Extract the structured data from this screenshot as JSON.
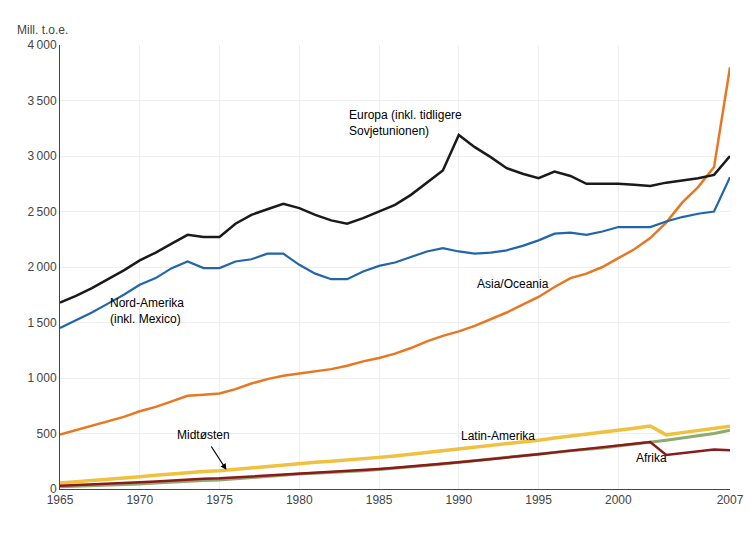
{
  "chart_data": {
    "type": "line",
    "y_label": "Mill. t.o.e.",
    "x": [
      1965,
      1966,
      1967,
      1968,
      1969,
      1970,
      1971,
      1972,
      1973,
      1974,
      1975,
      1976,
      1977,
      1978,
      1979,
      1980,
      1981,
      1982,
      1983,
      1984,
      1985,
      1986,
      1987,
      1988,
      1989,
      1990,
      1991,
      1992,
      1993,
      1994,
      1995,
      1996,
      1997,
      1998,
      1999,
      2000,
      2001,
      2002,
      2003,
      2004,
      2005,
      2006,
      2007
    ],
    "series": [
      {
        "color": "#f0c040",
        "values": [
          55,
          65,
          75,
          86,
          97,
          110,
          123,
          136,
          150,
          158,
          165,
          178,
          193,
          207,
          222,
          232,
          241,
          250,
          260,
          272,
          285,
          298,
          313,
          330,
          347,
          362,
          375,
          390,
          405,
          422,
          440,
          460,
          476,
          494,
          510,
          530,
          548,
          567,
          488,
          508,
          528,
          545,
          565
        ]
      },
      {
        "color": "#8faa6e",
        "values": [
          20,
          24,
          28,
          33,
          39,
          46,
          54,
          63,
          74,
          77,
          80,
          92,
          104,
          117,
          130,
          136,
          141,
          148,
          156,
          165,
          176,
          186,
          198,
          212,
          226,
          240,
          253,
          266,
          280,
          295,
          310,
          328,
          344,
          356,
          370,
          387,
          403,
          420,
          440,
          460,
          480,
          500,
          530
        ]
      },
      {
        "color": "#8b1a1a",
        "values": [
          30,
          35,
          40,
          46,
          52,
          60,
          68,
          77,
          87,
          92,
          96,
          104,
          113,
          123,
          133,
          140,
          146,
          153,
          162,
          171,
          181,
          192,
          203,
          215,
          228,
          242,
          255,
          268,
          282,
          297,
          313,
          330,
          346,
          359,
          374,
          390,
          407,
          424,
          307,
          323,
          340,
          355,
          348
        ]
      },
      {
        "color": "#e87722",
        "values": [
          490,
          530,
          570,
          610,
          650,
          700,
          740,
          790,
          840,
          850,
          860,
          900,
          950,
          990,
          1020,
          1040,
          1060,
          1080,
          1110,
          1150,
          1180,
          1220,
          1270,
          1330,
          1380,
          1420,
          1470,
          1530,
          1590,
          1660,
          1730,
          1820,
          1900,
          1940,
          2000,
          2080,
          2160,
          2260,
          2400,
          2580,
          2720,
          2900,
          3800
        ]
      },
      {
        "color": "#2166ac",
        "values": [
          1450,
          1520,
          1590,
          1670,
          1750,
          1840,
          1900,
          1990,
          2050,
          1990,
          1990,
          2050,
          2070,
          2120,
          2120,
          2020,
          1940,
          1890,
          1890,
          1960,
          2010,
          2040,
          2090,
          2140,
          2170,
          2140,
          2120,
          2130,
          2150,
          2190,
          2240,
          2300,
          2310,
          2290,
          2320,
          2360,
          2360,
          2360,
          2410,
          2450,
          2480,
          2500,
          2810
        ]
      },
      {
        "color": "#1a1a1a",
        "values": [
          1680,
          1740,
          1810,
          1890,
          1970,
          2060,
          2130,
          2210,
          2290,
          2270,
          2270,
          2390,
          2470,
          2520,
          2570,
          2530,
          2470,
          2420,
          2390,
          2440,
          2500,
          2560,
          2650,
          2760,
          2870,
          3190,
          3080,
          2990,
          2890,
          2840,
          2800,
          2860,
          2820,
          2750,
          2750,
          2750,
          2740,
          2730,
          2760,
          2780,
          2800,
          2830,
          3000
        ]
      }
    ],
    "xlim": [
      1965,
      2007
    ],
    "ylim": [
      0,
      4000
    ],
    "xticks": [
      1965,
      1970,
      1975,
      1980,
      1985,
      1990,
      1995,
      2000,
      2007
    ],
    "yticks": [
      0,
      500,
      {
        "value": 1000,
        "label": "1 000"
      },
      {
        "value": 1500,
        "label": "1 500"
      },
      {
        "value": 2000,
        "label": "2 000"
      },
      {
        "value": 2500,
        "label": "2 500"
      },
      {
        "value": 3000,
        "label": "3 000"
      },
      {
        "value": 3500,
        "label": "3 500"
      },
      {
        "value": 4000,
        "label": "4 000"
      }
    ],
    "grid": true,
    "annotations": [
      {
        "text": "Europa (inkl. tidligere\nSovjetunionen)",
        "x": 1983,
        "y": 3450
      },
      {
        "text": "Nord-Amerika\n(inkl. Mexico)",
        "x": 1968,
        "y": 1760
      },
      {
        "text": "Asia/Oceania",
        "x": 1991,
        "y": 1850
      },
      {
        "text": "Latin-Amerika",
        "x": 1990,
        "y": 480
      },
      {
        "text": "Afrika",
        "x": 2001,
        "y": 275
      },
      {
        "text": "Midtøsten",
        "x": 1974,
        "y": 490,
        "arrow_x": 1975.5,
        "arrow_y": 158
      }
    ]
  }
}
